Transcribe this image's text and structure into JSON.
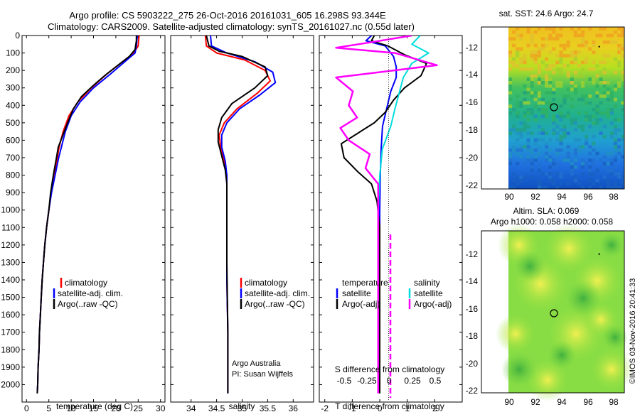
{
  "title": {
    "line1": "Argo profile: CS 5903222_275 26-Oct-2016 20161031_605 16.298S 93.344E",
    "line2": "Climatology: CARS2009. Satellite-adjusted climatology: synTS_20161027.nc (0.55d later)"
  },
  "chart_data": [
    {
      "id": "temperature",
      "type": "line",
      "xlabel": "temperature (deg C)",
      "ylabel": "",
      "xlim": [
        -1,
        31
      ],
      "ylim": [
        2100,
        0
      ],
      "xticks": [
        0,
        5,
        10,
        15,
        20,
        25,
        30
      ],
      "yticks": [
        0,
        100,
        200,
        300,
        400,
        500,
        600,
        700,
        800,
        900,
        1000,
        1100,
        1200,
        1300,
        1400,
        1500,
        1600,
        1700,
        1800,
        1900,
        2000
      ],
      "legend": [
        "climatology",
        "satellite-adj. clim.",
        "Argo(..raw -QC)"
      ],
      "series": [
        {
          "name": "climatology",
          "color": "#ff0000",
          "points": [
            [
              25.2,
              0
            ],
            [
              25.0,
              60
            ],
            [
              24.0,
              100
            ],
            [
              21.5,
              150
            ],
            [
              18.0,
              220
            ],
            [
              14.5,
              300
            ],
            [
              11.5,
              380
            ],
            [
              9.5,
              460
            ],
            [
              8.2,
              550
            ],
            [
              7.3,
              640
            ],
            [
              6.9,
              700
            ],
            [
              6.2,
              800
            ],
            [
              5.5,
              900
            ],
            [
              5.0,
              1000
            ],
            [
              4.5,
              1100
            ],
            [
              4.1,
              1200
            ],
            [
              3.8,
              1300
            ],
            [
              3.5,
              1400
            ],
            [
              3.3,
              1500
            ],
            [
              3.1,
              1600
            ],
            [
              2.9,
              1700
            ],
            [
              2.8,
              1800
            ],
            [
              2.6,
              1900
            ],
            [
              2.5,
              2000
            ],
            [
              2.4,
              2050
            ]
          ]
        },
        {
          "name": "satellite-adj. clim.",
          "color": "#0000ff",
          "points": [
            [
              24.8,
              0
            ],
            [
              24.6,
              60
            ],
            [
              24.3,
              100
            ],
            [
              22.0,
              150
            ],
            [
              18.8,
              220
            ],
            [
              15.0,
              300
            ],
            [
              12.0,
              380
            ],
            [
              10.0,
              460
            ],
            [
              8.7,
              550
            ],
            [
              7.8,
              640
            ],
            [
              7.2,
              700
            ],
            [
              6.4,
              800
            ],
            [
              5.6,
              900
            ],
            [
              5.0,
              1000
            ],
            [
              4.5,
              1100
            ],
            [
              4.1,
              1200
            ],
            [
              3.8,
              1300
            ],
            [
              3.5,
              1400
            ],
            [
              3.3,
              1500
            ],
            [
              3.1,
              1600
            ],
            [
              2.9,
              1700
            ],
            [
              2.8,
              1800
            ],
            [
              2.6,
              1900
            ],
            [
              2.5,
              2000
            ],
            [
              2.4,
              2050
            ]
          ]
        },
        {
          "name": "Argo(..raw -QC)",
          "color": "#000000",
          "points": [
            [
              24.6,
              0
            ],
            [
              24.6,
              30
            ],
            [
              24.3,
              80
            ],
            [
              23.0,
              120
            ],
            [
              20.5,
              170
            ],
            [
              17.5,
              230
            ],
            [
              14.8,
              290
            ],
            [
              12.3,
              350
            ],
            [
              10.5,
              420
            ],
            [
              9.2,
              500
            ],
            [
              8.0,
              580
            ],
            [
              7.1,
              640
            ],
            [
              6.7,
              700
            ],
            [
              6.0,
              800
            ],
            [
              5.4,
              900
            ],
            [
              5.0,
              1000
            ],
            [
              4.5,
              1100
            ],
            [
              4.1,
              1200
            ],
            [
              3.8,
              1300
            ],
            [
              3.5,
              1400
            ],
            [
              3.3,
              1500
            ],
            [
              3.1,
              1600
            ],
            [
              2.9,
              1700
            ],
            [
              2.8,
              1800
            ],
            [
              2.6,
              1900
            ],
            [
              2.5,
              2000
            ],
            [
              2.4,
              2050
            ]
          ]
        }
      ]
    },
    {
      "id": "salinity",
      "type": "line",
      "xlabel": "salinity",
      "xlim": [
        33.6,
        36.4
      ],
      "ylim": [
        2100,
        0
      ],
      "xticks": [
        34,
        34.5,
        35,
        35.5,
        36
      ],
      "legend": [
        "climatology",
        "satellite-adj. clim.",
        "Argo(..raw -QC)"
      ],
      "annotation": [
        "Argo Australia",
        "PI: Susan Wijffels"
      ],
      "series": [
        {
          "name": "climatology",
          "color": "#ff0000",
          "points": [
            [
              34.28,
              0
            ],
            [
              34.3,
              60
            ],
            [
              34.5,
              100
            ],
            [
              35.05,
              140
            ],
            [
              35.45,
              200
            ],
            [
              35.55,
              260
            ],
            [
              35.3,
              330
            ],
            [
              34.9,
              420
            ],
            [
              34.65,
              500
            ],
            [
              34.55,
              570
            ],
            [
              34.58,
              640
            ],
            [
              34.65,
              720
            ],
            [
              34.7,
              800
            ],
            [
              34.7,
              900
            ],
            [
              34.7,
              1100
            ],
            [
              34.7,
              1400
            ],
            [
              34.72,
              1700
            ],
            [
              34.72,
              2050
            ]
          ]
        },
        {
          "name": "satellite-adj. clim.",
          "color": "#0000ff",
          "points": [
            [
              34.38,
              0
            ],
            [
              34.4,
              60
            ],
            [
              34.7,
              100
            ],
            [
              35.25,
              150
            ],
            [
              35.6,
              210
            ],
            [
              35.65,
              270
            ],
            [
              35.35,
              340
            ],
            [
              34.95,
              420
            ],
            [
              34.7,
              500
            ],
            [
              34.6,
              570
            ],
            [
              34.6,
              640
            ],
            [
              34.67,
              720
            ],
            [
              34.7,
              800
            ],
            [
              34.7,
              900
            ],
            [
              34.7,
              1100
            ],
            [
              34.7,
              1400
            ],
            [
              34.72,
              1700
            ],
            [
              34.72,
              2050
            ]
          ]
        },
        {
          "name": "Argo(..raw -QC)",
          "color": "#000000",
          "points": [
            [
              34.3,
              0
            ],
            [
              34.35,
              60
            ],
            [
              34.55,
              90
            ],
            [
              35.0,
              120
            ],
            [
              35.45,
              180
            ],
            [
              35.5,
              230
            ],
            [
              35.25,
              300
            ],
            [
              34.8,
              390
            ],
            [
              34.6,
              470
            ],
            [
              34.53,
              540
            ],
            [
              34.53,
              610
            ],
            [
              34.6,
              690
            ],
            [
              34.67,
              770
            ],
            [
              34.7,
              850
            ],
            [
              34.7,
              1000
            ],
            [
              34.7,
              1300
            ],
            [
              34.72,
              1700
            ],
            [
              34.72,
              2050
            ]
          ]
        }
      ]
    },
    {
      "id": "difference",
      "type": "line",
      "xlabel": "T difference from climatology",
      "xlabel_top": "S difference from climatology",
      "xlim": [
        -2.2,
        3.0
      ],
      "ylim": [
        2100,
        0
      ],
      "xticks": [
        "-2",
        "-1",
        "0",
        "1",
        "2"
      ],
      "s_ticks": [
        "-0.5",
        "-0.25",
        "0",
        "0.25",
        "0.5"
      ],
      "legend_t_title": "temperature",
      "legend_s_title": "salinity",
      "legend": [
        "satellite",
        "Argo(-adj)",
        "satellite",
        "Argo(-adj)"
      ],
      "series": [
        {
          "name": "T satellite",
          "color": "#0000ff",
          "points": [
            [
              -0.3,
              0
            ],
            [
              -0.5,
              30
            ],
            [
              0.2,
              60
            ],
            [
              0.5,
              120
            ],
            [
              0.6,
              180
            ],
            [
              0.6,
              240
            ],
            [
              0.4,
              320
            ],
            [
              0.25,
              420
            ],
            [
              0.1,
              520
            ],
            [
              0.05,
              650
            ],
            [
              0.02,
              800
            ],
            [
              0,
              1000
            ],
            [
              0,
              2050
            ]
          ]
        },
        {
          "name": "T Argo(-adj)",
          "color": "#000000",
          "points": [
            [
              -0.2,
              0
            ],
            [
              -0.3,
              30
            ],
            [
              0.3,
              60
            ],
            [
              0.9,
              110
            ],
            [
              1.7,
              160
            ],
            [
              1.5,
              230
            ],
            [
              0.9,
              300
            ],
            [
              0.5,
              370
            ],
            [
              0.2,
              440
            ],
            [
              -0.2,
              500
            ],
            [
              -0.8,
              560
            ],
            [
              -1.4,
              620
            ],
            [
              -1.3,
              700
            ],
            [
              -0.8,
              780
            ],
            [
              -0.3,
              850
            ],
            [
              -0.1,
              950
            ],
            [
              0,
              1100
            ],
            [
              0,
              2050
            ]
          ]
        },
        {
          "name": "S satellite",
          "color": "#00dddd",
          "points": [
            [
              0.5,
              0
            ],
            [
              0.4,
              50
            ],
            [
              0.6,
              100
            ],
            [
              0.4,
              160
            ],
            [
              0.3,
              240
            ],
            [
              0.25,
              330
            ],
            [
              0.2,
              420
            ],
            [
              0.15,
              520
            ],
            [
              0.05,
              650
            ],
            [
              0.02,
              800
            ],
            [
              0,
              1000
            ],
            [
              0,
              2050
            ]
          ]
        },
        {
          "name": "S Argo(-adj)",
          "color": "#ff00ff",
          "points": [
            [
              0.4,
              0
            ],
            [
              -0.1,
              40
            ],
            [
              -0.5,
              70
            ],
            [
              0.2,
              100
            ],
            [
              0.7,
              170
            ],
            [
              -0.5,
              240
            ],
            [
              -0.3,
              320
            ],
            [
              -0.35,
              400
            ],
            [
              -0.25,
              470
            ],
            [
              -0.45,
              530
            ],
            [
              -0.35,
              600
            ],
            [
              -0.1,
              680
            ],
            [
              -0.15,
              760
            ],
            [
              0,
              850
            ],
            [
              0,
              1000
            ],
            [
              0,
              1500
            ],
            [
              0,
              2050
            ]
          ]
        }
      ]
    }
  ],
  "maps": {
    "sst": {
      "title": "sat. SST: 24.6  Argo: 24.7",
      "yticks": [
        "-12",
        "-14",
        "-16",
        "-18",
        "-20",
        "-22"
      ],
      "xticks": [
        "90",
        "92",
        "94",
        "96",
        "98"
      ]
    },
    "sla": {
      "title_line1": "Altim. SLA: 0.069",
      "title_line2": "Argo h1000: 0.058 h2000: 0.058",
      "yticks": [
        "-12",
        "-14",
        "-16",
        "-18",
        "-20",
        "-22"
      ],
      "xticks": [
        "90",
        "92",
        "94",
        "96",
        "98"
      ]
    }
  },
  "credit": "©IMOS 03-Nov-2016 20:41:33"
}
